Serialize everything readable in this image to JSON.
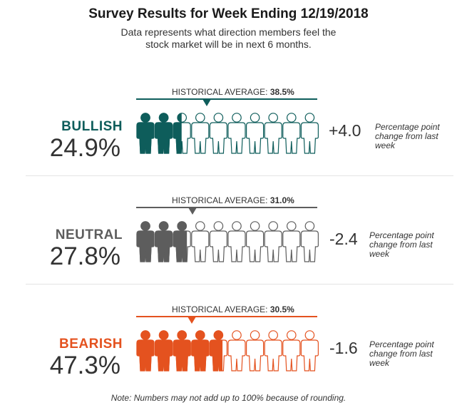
{
  "title": "Survey Results for Week Ending 12/19/2018",
  "subtitle_line1": "Data represents what direction members feel the",
  "subtitle_line2": "stock market will be in next 6 months.",
  "note": "Note: Numbers may not add up to 100% because of rounding.",
  "historical_label": "HISTORICAL AVERAGE:",
  "change_note": "Percentage point change from last week",
  "chart_data": {
    "type": "pictogram",
    "icons_total": 10,
    "rows": [
      {
        "label": "BULLISH",
        "value": 24.9,
        "value_text": "24.9%",
        "historical": 38.5,
        "historical_text": "38.5%",
        "change": 4.0,
        "change_text": "+4.0",
        "color": "#0e5d5b"
      },
      {
        "label": "NEUTRAL",
        "value": 27.8,
        "value_text": "27.8%",
        "historical": 31.0,
        "historical_text": "31.0%",
        "change": -2.4,
        "change_text": "-2.4",
        "color": "#5d5d5d"
      },
      {
        "label": "BEARISH",
        "value": 47.3,
        "value_text": "47.3%",
        "historical": 30.5,
        "historical_text": "30.5%",
        "change": -1.6,
        "change_text": "-1.6",
        "color": "#e4521f"
      }
    ]
  }
}
